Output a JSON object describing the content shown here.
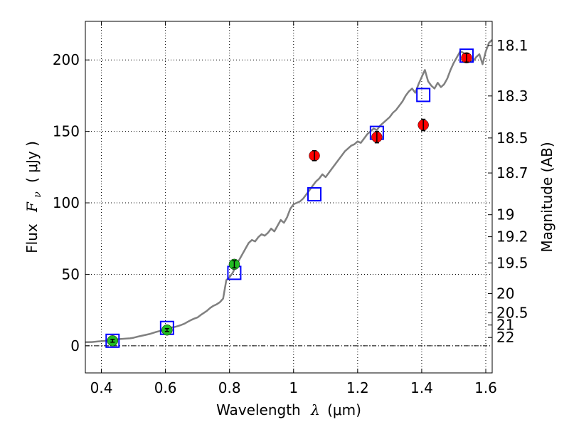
{
  "chart_data": {
    "type": "scatter",
    "xlabel_main": "Wavelength",
    "xlabel_symbol": "λ",
    "xlabel_unit": "(μm)",
    "ylabel_main": "Flux",
    "ylabel_symbol": "F",
    "ylabel_subscript": "ν",
    "ylabel_unit": "( μJy )",
    "y2label": "Magnitude (AB)",
    "xlim": [
      0.35,
      1.62
    ],
    "ylim": [
      -19,
      227
    ],
    "grid": true,
    "x_ticks": [
      {
        "v": 0.4,
        "label": "0.4"
      },
      {
        "v": 0.6,
        "label": "0.6"
      },
      {
        "v": 0.8,
        "label": "0.8"
      },
      {
        "v": 1.0,
        "label": "1"
      },
      {
        "v": 1.2,
        "label": "1.2"
      },
      {
        "v": 1.4,
        "label": "1.4"
      },
      {
        "v": 1.6,
        "label": "1.6"
      }
    ],
    "y_ticks": [
      {
        "v": 0,
        "label": "0"
      },
      {
        "v": 50,
        "label": "50"
      },
      {
        "v": 100,
        "label": "100"
      },
      {
        "v": 150,
        "label": "150"
      },
      {
        "v": 200,
        "label": "200"
      }
    ],
    "mag_ticks": [
      {
        "label": "18.1",
        "flux": 210.1
      },
      {
        "label": "18.3",
        "flux": 174.8
      },
      {
        "label": "18.5",
        "flux": 145.4
      },
      {
        "label": "18.7",
        "flux": 120.9
      },
      {
        "label": "19",
        "flux": 91.7
      },
      {
        "label": "19.2",
        "flux": 76.3
      },
      {
        "label": "19.5",
        "flux": 57.9
      },
      {
        "label": "20",
        "flux": 36.5
      },
      {
        "label": "20.5",
        "flux": 23.0
      },
      {
        "label": "21",
        "flux": 14.5
      },
      {
        "label": "22",
        "flux": 5.8
      }
    ],
    "series": [
      {
        "kind": "model_spectrum_line",
        "color": "#808080",
        "x": [
          0.35,
          0.37,
          0.39,
          0.41,
          0.43,
          0.45,
          0.47,
          0.49,
          0.5,
          0.51,
          0.53,
          0.55,
          0.57,
          0.59,
          0.6,
          0.61,
          0.62,
          0.63,
          0.64,
          0.65,
          0.66,
          0.67,
          0.68,
          0.69,
          0.7,
          0.71,
          0.72,
          0.73,
          0.74,
          0.75,
          0.76,
          0.77,
          0.78,
          0.79,
          0.8,
          0.81,
          0.82,
          0.83,
          0.84,
          0.85,
          0.86,
          0.87,
          0.88,
          0.89,
          0.9,
          0.91,
          0.92,
          0.93,
          0.94,
          0.95,
          0.96,
          0.97,
          0.98,
          0.99,
          1.0,
          1.01,
          1.02,
          1.03,
          1.04,
          1.05,
          1.06,
          1.07,
          1.08,
          1.09,
          1.1,
          1.11,
          1.12,
          1.13,
          1.14,
          1.15,
          1.16,
          1.17,
          1.18,
          1.19,
          1.2,
          1.21,
          1.22,
          1.23,
          1.24,
          1.25,
          1.26,
          1.27,
          1.28,
          1.29,
          1.3,
          1.31,
          1.32,
          1.33,
          1.34,
          1.35,
          1.36,
          1.37,
          1.38,
          1.39,
          1.4,
          1.41,
          1.42,
          1.43,
          1.44,
          1.45,
          1.46,
          1.47,
          1.48,
          1.49,
          1.5,
          1.51,
          1.52,
          1.53,
          1.54,
          1.55,
          1.56,
          1.57,
          1.58,
          1.59,
          1.6,
          1.61,
          1.62
        ],
        "y": [
          2.5,
          2.6,
          3.0,
          3.4,
          4.1,
          4.6,
          4.9,
          5.2,
          5.6,
          6.2,
          7.2,
          8.2,
          9.6,
          10.8,
          11.6,
          12.2,
          12.8,
          13.2,
          13.8,
          14.6,
          15.5,
          16.8,
          18.0,
          19.0,
          19.8,
          21.5,
          23.0,
          24.5,
          26.5,
          28.0,
          29.0,
          30.5,
          33.0,
          46.0,
          48.0,
          51.0,
          56.0,
          60.0,
          64.0,
          68.0,
          72.0,
          74.0,
          73.0,
          76.0,
          78.0,
          77.0,
          79.0,
          82.0,
          80.0,
          84.0,
          88.0,
          86.0,
          90.0,
          96.0,
          99.0,
          100.0,
          101.0,
          103.0,
          106.0,
          109.0,
          112.0,
          115.0,
          117.0,
          120.0,
          118.0,
          121.0,
          124.0,
          127.0,
          130.0,
          133.0,
          136.0,
          138.0,
          140.0,
          141.0,
          143.0,
          142.0,
          145.0,
          148.0,
          150.0,
          152.0,
          151.0,
          154.0,
          156.0,
          158.0,
          160.0,
          163.0,
          165.0,
          168.0,
          171.0,
          175.0,
          178.0,
          180.0,
          177.0,
          183.0,
          188.0,
          193.0,
          185.0,
          182.0,
          180.0,
          184.0,
          181.0,
          183.0,
          187.0,
          193.0,
          198.0,
          202.0,
          206.0,
          205.0,
          203.0,
          200.0,
          199.0,
          202.0,
          204.0,
          197.0,
          206.0,
          212.0,
          214.0
        ]
      },
      {
        "kind": "model_photometry_squares",
        "color": "#0000ff",
        "x": [
          0.435,
          0.605,
          0.815,
          1.065,
          1.26,
          1.405,
          1.54
        ],
        "y": [
          3.5,
          12.5,
          51.0,
          106.0,
          149.0,
          175.5,
          203.0
        ]
      },
      {
        "kind": "observed_optical_points",
        "color": "#22bb22",
        "x": [
          0.435,
          0.605,
          0.815
        ],
        "y": [
          3.5,
          11.0,
          57.0
        ],
        "err": [
          1.0,
          1.0,
          2.5
        ]
      },
      {
        "kind": "observed_nir_points",
        "color": "#ff0000",
        "x": [
          1.065,
          1.26,
          1.405,
          1.54
        ],
        "y": [
          133.0,
          146.0,
          154.5,
          201.5
        ],
        "err": [
          3.5,
          4.0,
          4.0,
          3.0
        ]
      }
    ]
  }
}
